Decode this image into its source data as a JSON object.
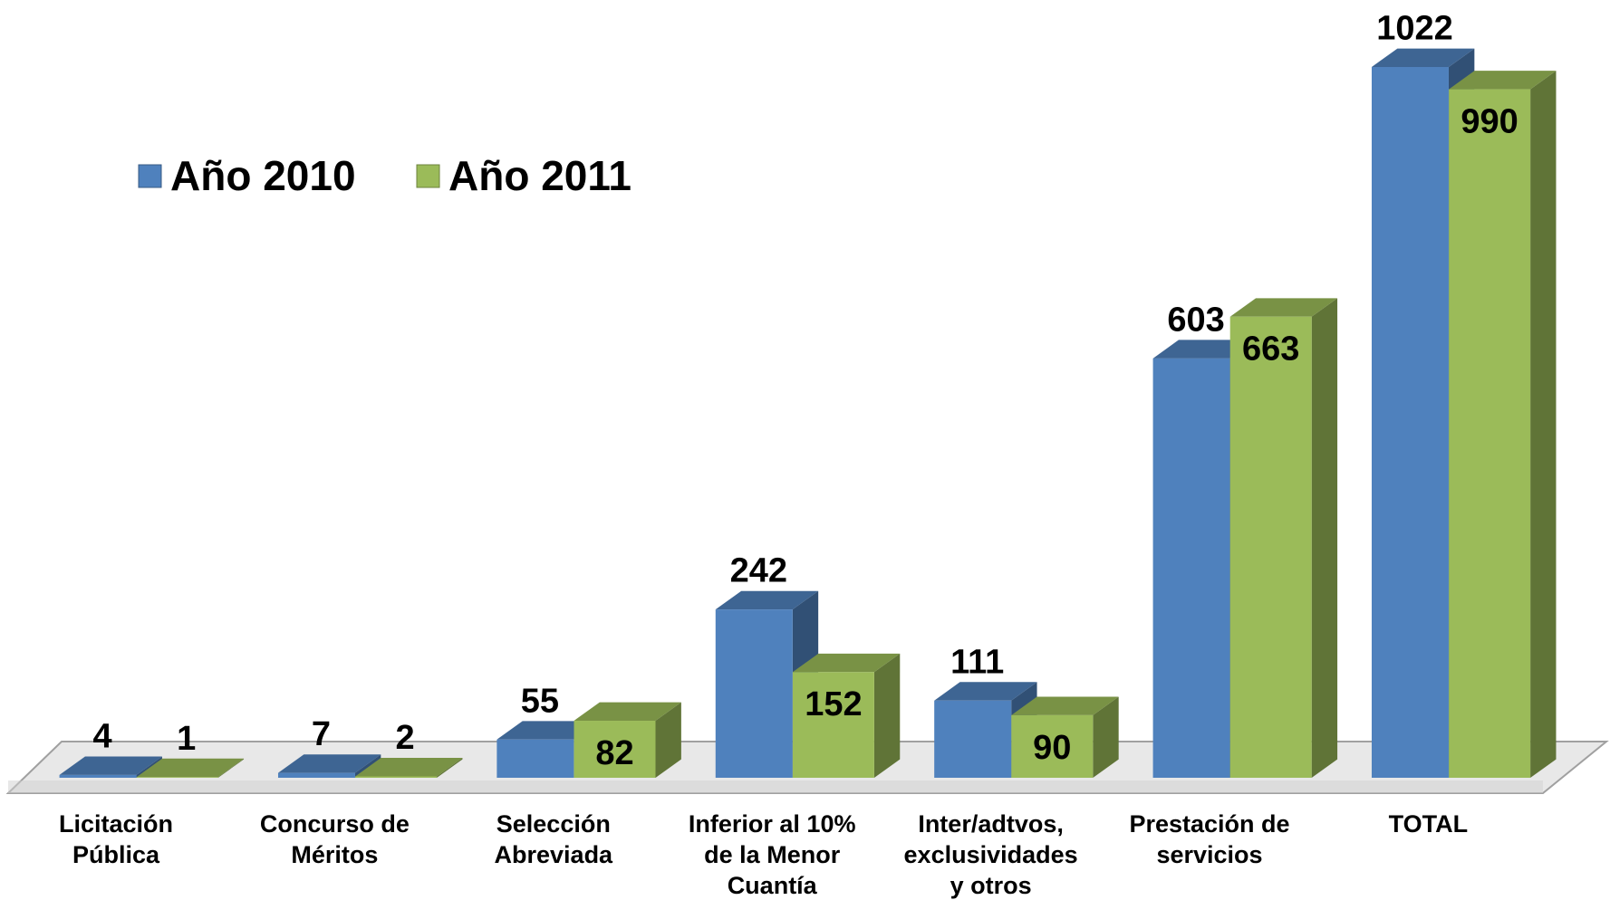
{
  "chart_data": {
    "type": "bar3d",
    "categories": [
      "Licitación\nPública",
      "Concurso de\nMéritos",
      "Selección\nAbreviada",
      "Inferior al 10%\nde la Menor\nCuantía",
      "Inter/adtvos,\nexclusividades\ny otros",
      "Prestación de\nservicios",
      "TOTAL"
    ],
    "series": [
      {
        "name": "Año 2010",
        "color": "#4f81bd",
        "values": [
          4,
          7,
          55,
          242,
          111,
          603,
          1022
        ]
      },
      {
        "name": "Año 2011",
        "color": "#9bbb59",
        "values": [
          1,
          2,
          82,
          152,
          90,
          663,
          990
        ]
      }
    ],
    "legend": "top-left"
  }
}
